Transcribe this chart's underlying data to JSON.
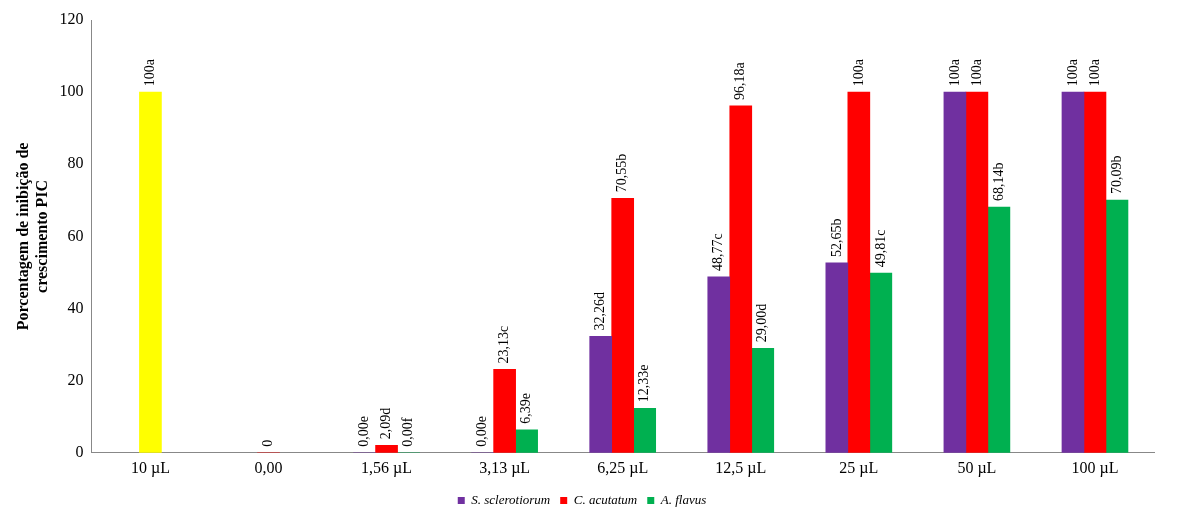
{
  "chart_data": {
    "type": "bar",
    "ylabel": "Porcentagem de inibição de crescimento PIC",
    "categories": [
      "10 µL",
      "0,00",
      "1,56 µL",
      "3,13 µL",
      "6,25 µL",
      "12,5 µL",
      "25 µL",
      "50 µL",
      "100 µL"
    ],
    "series": [
      {
        "color": "#ffff00",
        "values": [
          100,
          null,
          null,
          null,
          null,
          null,
          null,
          null,
          null
        ],
        "value_labels": [
          "100a",
          null,
          null,
          null,
          null,
          null,
          null,
          null,
          null
        ]
      },
      {
        "name": "S. sclerotiorum",
        "color": "#7030a0",
        "values": [
          null,
          null,
          0,
          0,
          32.26,
          48.77,
          52.65,
          100,
          100
        ],
        "value_labels": [
          null,
          null,
          "0,00e",
          "0,00e",
          "32,26d",
          "48,77c",
          "52,65b",
          "100a",
          "100a"
        ]
      },
      {
        "name": "C. acutatum",
        "color": "#ff0000",
        "values": [
          null,
          0,
          2.09,
          23.13,
          70.55,
          96.18,
          100,
          100,
          100
        ],
        "value_labels": [
          null,
          "0",
          "2,09d",
          "23,13c",
          "70,55b",
          "96,18a",
          "100a",
          "100a",
          "100a"
        ]
      },
      {
        "name": "A. flavus",
        "color": "#00b050",
        "values": [
          null,
          null,
          0,
          6.39,
          12.33,
          29.0,
          49.81,
          68.14,
          70.09
        ],
        "value_labels": [
          null,
          null,
          "0,00f",
          "6,39e",
          "12,33e",
          "29,00d",
          "49,81c",
          "68,14b",
          "70,09b"
        ]
      }
    ],
    "ylim": [
      0,
      120
    ],
    "yticks": [
      0,
      20,
      40,
      60,
      80,
      100,
      120
    ],
    "grid": false,
    "legend": "bottom"
  }
}
